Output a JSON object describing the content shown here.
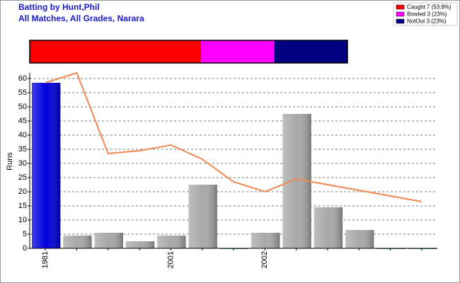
{
  "chart_data": {
    "type": "bar",
    "title": "Batting by Hunt,Phil",
    "subtitle": "All Matches, All Grades, Narara",
    "y_label": "Runs",
    "dismissals": [
      {
        "label": "Caught 7 (53.8%)",
        "value": 53.8,
        "color": "#ff0000"
      },
      {
        "label": "Bowled 3 (23%)",
        "value": 23,
        "color": "#ff00ff"
      },
      {
        "label": "NotOut 3 (23%)",
        "value": 23,
        "color": "#000080"
      }
    ],
    "categories": [
      "1981",
      null,
      null,
      null,
      "2001",
      null,
      null,
      "2002",
      null,
      null,
      null,
      null,
      null
    ],
    "series": [
      {
        "type": "bar",
        "values": [
          58.5,
          4.5,
          5.5,
          2.5,
          4.5,
          22.5,
          0,
          5.5,
          47.5,
          14.5,
          6.5,
          0,
          0
        ],
        "colors": [
          "#0000dd",
          "#a8a8a8",
          "#a8a8a8",
          "#a8a8a8",
          "#a8a8a8",
          "#a8a8a8",
          "#2a8a2a",
          "#a8a8a8",
          "#a8a8a8",
          "#a8a8a8",
          "#a8a8a8",
          "#2a8a2a",
          "#2a8a2a"
        ]
      },
      {
        "type": "line",
        "color": "#f08850",
        "values": [
          58.5,
          62,
          33.5,
          34.5,
          36.5,
          31.5,
          23.5,
          20,
          24.5,
          22.5,
          20.5,
          18.5,
          16.5
        ]
      }
    ],
    "ylim": [
      0,
      62
    ],
    "yticks": [
      0,
      5,
      10,
      15,
      20,
      25,
      30,
      35,
      40,
      45,
      50,
      55,
      60
    ],
    "grid": true
  }
}
